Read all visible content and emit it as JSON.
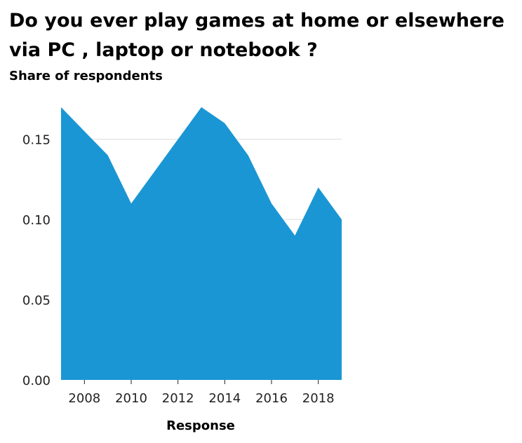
{
  "chart_data": {
    "type": "area",
    "title": "Do you ever play games at home or elsewhere via PC , laptop or notebook ?",
    "title_lines": [
      "Do you ever play games at home or elsewhere",
      "via PC , laptop or notebook ?"
    ],
    "xlabel": "Response",
    "ylabel": "Share of respondents",
    "x": [
      2007,
      2008,
      2009,
      2010,
      2011,
      2012,
      2013,
      2014,
      2015,
      2016,
      2017,
      2018,
      2019
    ],
    "series": [
      {
        "values": [
          0.17,
          0.155,
          0.14,
          0.11,
          0.13,
          0.15,
          0.17,
          0.16,
          0.14,
          0.11,
          0.09,
          0.12,
          0.1
        ]
      }
    ],
    "xlim": [
      2007,
      2019
    ],
    "ylim": [
      0,
      0.18
    ],
    "xticks": [
      2008,
      2010,
      2012,
      2014,
      2016,
      2018
    ],
    "xtick_labels": [
      "2008",
      "2010",
      "2012",
      "2014",
      "2016",
      "2018"
    ],
    "yticks": [
      0.0,
      0.05,
      0.1,
      0.15
    ],
    "ytick_labels": [
      "0.00",
      "0.05",
      "0.10",
      "0.15"
    ],
    "grid": "horizontal",
    "fill_color": "#1b96d4",
    "grid_color": "#dddddd"
  }
}
